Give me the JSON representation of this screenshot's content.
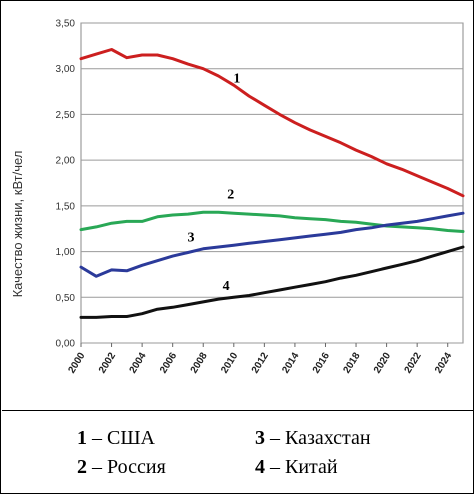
{
  "chart_data": {
    "type": "line",
    "ylabel": "Качество жизни, кВт/чел",
    "ylim": [
      0,
      3.5
    ],
    "yticks": [
      "0,00",
      "0,50",
      "1,00",
      "1,50",
      "2,00",
      "2,50",
      "3,00",
      "3,50"
    ],
    "xlim": [
      2000,
      2025
    ],
    "xticks": [
      "2000",
      "2002",
      "2004",
      "2006",
      "2008",
      "2010",
      "2012",
      "2014",
      "2016",
      "2018",
      "2020",
      "2022",
      "2024"
    ],
    "grid": true,
    "series": [
      {
        "name": "США",
        "label": "1",
        "color": "#cc1f1f",
        "label_at": [
          2010.2,
          2.85
        ],
        "x": [
          2000,
          2001,
          2002,
          2003,
          2004,
          2005,
          2006,
          2007,
          2008,
          2009,
          2010,
          2011,
          2012,
          2013,
          2014,
          2015,
          2016,
          2017,
          2018,
          2019,
          2020,
          2021,
          2022,
          2023,
          2024,
          2025
        ],
        "y": [
          3.11,
          3.16,
          3.21,
          3.12,
          3.15,
          3.15,
          3.11,
          3.05,
          3.0,
          2.92,
          2.82,
          2.7,
          2.6,
          2.5,
          2.41,
          2.33,
          2.26,
          2.19,
          2.11,
          2.04,
          1.96,
          1.9,
          1.83,
          1.76,
          1.69,
          1.61
        ]
      },
      {
        "name": "Россия",
        "label": "2",
        "color": "#29a856",
        "label_at": [
          2009.8,
          1.58
        ],
        "x": [
          2000,
          2001,
          2002,
          2003,
          2004,
          2005,
          2006,
          2007,
          2008,
          2009,
          2010,
          2011,
          2012,
          2013,
          2014,
          2015,
          2016,
          2017,
          2018,
          2019,
          2020,
          2021,
          2022,
          2023,
          2024,
          2025
        ],
        "y": [
          1.24,
          1.27,
          1.31,
          1.33,
          1.33,
          1.38,
          1.4,
          1.41,
          1.43,
          1.43,
          1.42,
          1.41,
          1.4,
          1.39,
          1.37,
          1.36,
          1.35,
          1.33,
          1.32,
          1.3,
          1.28,
          1.27,
          1.26,
          1.25,
          1.23,
          1.22
        ]
      },
      {
        "name": "Казахстан",
        "label": "3",
        "color": "#2b3a9a",
        "label_at": [
          2007.2,
          1.11
        ],
        "x": [
          2000,
          2001,
          2002,
          2003,
          2004,
          2005,
          2006,
          2007,
          2008,
          2009,
          2010,
          2011,
          2012,
          2013,
          2014,
          2015,
          2016,
          2017,
          2018,
          2019,
          2020,
          2021,
          2022,
          2023,
          2024,
          2025
        ],
        "y": [
          0.83,
          0.73,
          0.8,
          0.79,
          0.85,
          0.9,
          0.95,
          0.99,
          1.03,
          1.05,
          1.07,
          1.09,
          1.11,
          1.13,
          1.15,
          1.17,
          1.19,
          1.21,
          1.24,
          1.26,
          1.29,
          1.31,
          1.33,
          1.36,
          1.39,
          1.42
        ]
      },
      {
        "name": "Китай",
        "label": "4",
        "color": "#111111",
        "label_at": [
          2009.5,
          0.58
        ],
        "x": [
          2000,
          2001,
          2002,
          2003,
          2004,
          2005,
          2006,
          2007,
          2008,
          2009,
          2010,
          2011,
          2012,
          2013,
          2014,
          2015,
          2016,
          2017,
          2018,
          2019,
          2020,
          2021,
          2022,
          2023,
          2024,
          2025
        ],
        "y": [
          0.28,
          0.28,
          0.29,
          0.29,
          0.32,
          0.37,
          0.39,
          0.42,
          0.45,
          0.48,
          0.5,
          0.52,
          0.55,
          0.58,
          0.61,
          0.64,
          0.67,
          0.71,
          0.74,
          0.78,
          0.82,
          0.86,
          0.9,
          0.95,
          1.0,
          1.05
        ]
      }
    ]
  },
  "legend": [
    {
      "num": "1",
      "dash": " – ",
      "text": "США"
    },
    {
      "num": "3",
      "dash": " – ",
      "text": "Казахстан"
    },
    {
      "num": "2",
      "dash": " – ",
      "text": "Россия"
    },
    {
      "num": "4",
      "dash": " – ",
      "text": "Китай"
    }
  ]
}
